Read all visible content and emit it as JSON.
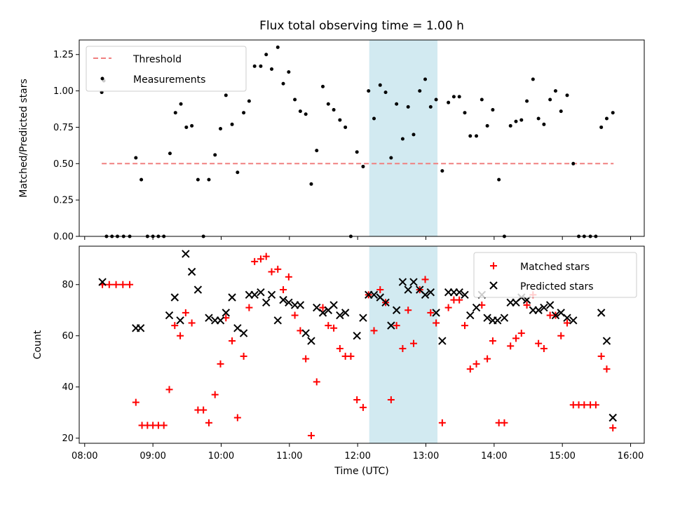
{
  "title": "Flux total observing time = 1.00 h",
  "colors": {
    "threshold": "#f08080",
    "measurement": "#000000",
    "matched": "#ff0000",
    "predicted": "#000000",
    "highlight": "#add8e6"
  },
  "chart_data": [
    {
      "type": "scatter",
      "ylabel": "Matched/Predicted stars",
      "xlim": [
        7.92,
        16.2
      ],
      "ylim": [
        0,
        1.35
      ],
      "x_ticks": [
        8,
        9,
        10,
        11,
        12,
        13,
        14,
        15,
        16
      ],
      "y_ticks": [
        0.0,
        0.25,
        0.5,
        0.75,
        1.0,
        1.25
      ],
      "y_tick_labels": [
        "0.00",
        "0.25",
        "0.50",
        "0.75",
        "1.00",
        "1.25"
      ],
      "highlight_span": [
        12.17,
        13.17
      ],
      "legend_position": "upper left",
      "threshold": {
        "name": "Threshold",
        "value": 0.5,
        "x_range": [
          8.25,
          15.75
        ]
      },
      "series": [
        {
          "name": "Measurements",
          "marker": "dot",
          "points": [
            [
              8.25,
              0.99
            ],
            [
              8.28,
              1.07
            ],
            [
              8.32,
              0
            ],
            [
              8.4,
              0
            ],
            [
              8.48,
              0
            ],
            [
              8.57,
              0
            ],
            [
              8.66,
              0
            ],
            [
              8.75,
              0.54
            ],
            [
              8.83,
              0.39
            ],
            [
              8.92,
              0
            ],
            [
              9.0,
              0
            ],
            [
              9.08,
              0
            ],
            [
              9.16,
              0
            ],
            [
              9.25,
              0.57
            ],
            [
              9.33,
              0.85
            ],
            [
              9.41,
              0.91
            ],
            [
              9.49,
              0.75
            ],
            [
              9.57,
              0.76
            ],
            [
              9.66,
              0.39
            ],
            [
              9.74,
              0
            ],
            [
              9.82,
              0.39
            ],
            [
              9.91,
              0.56
            ],
            [
              9.99,
              0.74
            ],
            [
              10.07,
              0.97
            ],
            [
              10.16,
              0.77
            ],
            [
              10.24,
              0.44
            ],
            [
              10.33,
              0.85
            ],
            [
              10.41,
              0.93
            ],
            [
              10.49,
              1.17
            ],
            [
              10.58,
              1.17
            ],
            [
              10.66,
              1.25
            ],
            [
              10.74,
              1.15
            ],
            [
              10.83,
              1.3
            ],
            [
              10.91,
              1.05
            ],
            [
              10.99,
              1.13
            ],
            [
              11.08,
              0.94
            ],
            [
              11.16,
              0.86
            ],
            [
              11.24,
              0.84
            ],
            [
              11.32,
              0.36
            ],
            [
              11.4,
              0.59
            ],
            [
              11.49,
              1.03
            ],
            [
              11.57,
              0.91
            ],
            [
              11.65,
              0.87
            ],
            [
              11.74,
              0.8
            ],
            [
              11.82,
              0.75
            ],
            [
              11.9,
              0
            ],
            [
              11.99,
              0.58
            ],
            [
              12.08,
              0.48
            ],
            [
              12.16,
              1.0
            ],
            [
              12.24,
              0.81
            ],
            [
              12.33,
              1.04
            ],
            [
              12.41,
              0.99
            ],
            [
              12.49,
              0.54
            ],
            [
              12.57,
              0.91
            ],
            [
              12.66,
              0.67
            ],
            [
              12.74,
              0.89
            ],
            [
              12.82,
              0.7
            ],
            [
              12.91,
              1.0
            ],
            [
              12.99,
              1.08
            ],
            [
              13.07,
              0.89
            ],
            [
              13.15,
              0.94
            ],
            [
              13.24,
              0.45
            ],
            [
              13.33,
              0.92
            ],
            [
              13.41,
              0.96
            ],
            [
              13.49,
              0.96
            ],
            [
              13.57,
              0.85
            ],
            [
              13.65,
              0.69
            ],
            [
              13.74,
              0.69
            ],
            [
              13.82,
              0.94
            ],
            [
              13.9,
              0.76
            ],
            [
              13.98,
              0.87
            ],
            [
              14.07,
              0.39
            ],
            [
              14.15,
              0
            ],
            [
              14.24,
              0.76
            ],
            [
              14.32,
              0.79
            ],
            [
              14.4,
              0.8
            ],
            [
              14.48,
              0.93
            ],
            [
              14.57,
              1.08
            ],
            [
              14.65,
              0.81
            ],
            [
              14.73,
              0.77
            ],
            [
              14.82,
              0.94
            ],
            [
              14.9,
              1.0
            ],
            [
              14.98,
              0.86
            ],
            [
              15.07,
              0.97
            ],
            [
              15.16,
              0.5
            ],
            [
              15.24,
              0
            ],
            [
              15.32,
              0
            ],
            [
              15.41,
              0
            ],
            [
              15.49,
              0
            ],
            [
              15.57,
              0.75
            ],
            [
              15.65,
              0.81
            ],
            [
              15.74,
              0.85
            ]
          ]
        }
      ]
    },
    {
      "type": "scatter",
      "xlabel": "Time (UTC)",
      "ylabel": "Count",
      "xlim": [
        7.92,
        16.2
      ],
      "ylim": [
        18,
        95
      ],
      "x_ticks": [
        8,
        9,
        10,
        11,
        12,
        13,
        14,
        15,
        16
      ],
      "x_tick_labels": [
        "08:00",
        "09:00",
        "10:00",
        "11:00",
        "12:00",
        "13:00",
        "14:00",
        "15:00",
        "16:00"
      ],
      "y_ticks": [
        20,
        40,
        60,
        80
      ],
      "y_tick_labels": [
        "20",
        "40",
        "60",
        "80"
      ],
      "highlight_span": [
        12.17,
        13.17
      ],
      "legend_position": "upper right",
      "series": [
        {
          "name": "Matched stars",
          "marker": "plus",
          "points": [
            [
              8.26,
              80
            ],
            [
              8.36,
              80
            ],
            [
              8.46,
              80
            ],
            [
              8.56,
              80
            ],
            [
              8.66,
              80
            ],
            [
              8.75,
              34
            ],
            [
              8.84,
              25
            ],
            [
              8.92,
              25
            ],
            [
              9.0,
              25
            ],
            [
              9.08,
              25
            ],
            [
              9.16,
              25
            ],
            [
              9.24,
              39
            ],
            [
              9.32,
              64
            ],
            [
              9.4,
              60
            ],
            [
              9.48,
              69
            ],
            [
              9.57,
              65
            ],
            [
              9.66,
              31
            ],
            [
              9.74,
              31
            ],
            [
              9.82,
              26
            ],
            [
              9.91,
              37
            ],
            [
              9.99,
              49
            ],
            [
              10.07,
              67
            ],
            [
              10.16,
              58
            ],
            [
              10.24,
              28
            ],
            [
              10.33,
              52
            ],
            [
              10.41,
              71
            ],
            [
              10.49,
              89
            ],
            [
              10.58,
              90
            ],
            [
              10.66,
              91
            ],
            [
              10.74,
              85
            ],
            [
              10.83,
              86
            ],
            [
              10.91,
              78
            ],
            [
              10.99,
              83
            ],
            [
              11.08,
              68
            ],
            [
              11.16,
              62
            ],
            [
              11.24,
              51
            ],
            [
              11.32,
              21
            ],
            [
              11.4,
              42
            ],
            [
              11.49,
              71
            ],
            [
              11.57,
              64
            ],
            [
              11.65,
              63
            ],
            [
              11.74,
              55
            ],
            [
              11.82,
              52
            ],
            [
              11.9,
              52
            ],
            [
              11.99,
              35
            ],
            [
              12.08,
              32
            ],
            [
              12.16,
              76
            ],
            [
              12.24,
              62
            ],
            [
              12.33,
              78
            ],
            [
              12.41,
              73
            ],
            [
              12.49,
              35
            ],
            [
              12.57,
              64
            ],
            [
              12.66,
              55
            ],
            [
              12.74,
              70
            ],
            [
              12.82,
              57
            ],
            [
              12.91,
              78
            ],
            [
              12.99,
              82
            ],
            [
              13.07,
              69
            ],
            [
              13.15,
              65
            ],
            [
              13.24,
              26
            ],
            [
              13.33,
              71
            ],
            [
              13.41,
              74
            ],
            [
              13.49,
              74
            ],
            [
              13.57,
              64
            ],
            [
              13.65,
              47
            ],
            [
              13.74,
              49
            ],
            [
              13.82,
              72
            ],
            [
              13.9,
              51
            ],
            [
              13.98,
              58
            ],
            [
              14.07,
              26
            ],
            [
              14.15,
              26
            ],
            [
              14.24,
              56
            ],
            [
              14.32,
              59
            ],
            [
              14.4,
              61
            ],
            [
              14.48,
              72
            ],
            [
              14.57,
              76
            ],
            [
              14.65,
              57
            ],
            [
              14.73,
              55
            ],
            [
              14.82,
              68
            ],
            [
              14.9,
              68
            ],
            [
              14.98,
              60
            ],
            [
              15.07,
              65
            ],
            [
              15.16,
              33
            ],
            [
              15.24,
              33
            ],
            [
              15.32,
              33
            ],
            [
              15.41,
              33
            ],
            [
              15.49,
              33
            ],
            [
              15.57,
              52
            ],
            [
              15.65,
              47
            ],
            [
              15.74,
              24
            ]
          ]
        },
        {
          "name": "Predicted stars",
          "marker": "x",
          "points": [
            [
              8.26,
              81
            ],
            [
              8.75,
              63
            ],
            [
              8.82,
              63
            ],
            [
              9.24,
              68
            ],
            [
              9.32,
              75
            ],
            [
              9.4,
              66
            ],
            [
              9.48,
              92
            ],
            [
              9.57,
              85
            ],
            [
              9.66,
              78
            ],
            [
              9.82,
              67
            ],
            [
              9.91,
              66
            ],
            [
              9.99,
              66
            ],
            [
              10.07,
              69
            ],
            [
              10.16,
              75
            ],
            [
              10.24,
              63
            ],
            [
              10.33,
              61
            ],
            [
              10.41,
              76
            ],
            [
              10.49,
              76
            ],
            [
              10.58,
              77
            ],
            [
              10.66,
              73
            ],
            [
              10.74,
              76
            ],
            [
              10.83,
              66
            ],
            [
              10.91,
              74
            ],
            [
              10.99,
              73
            ],
            [
              11.08,
              72
            ],
            [
              11.16,
              72
            ],
            [
              11.24,
              61
            ],
            [
              11.32,
              58
            ],
            [
              11.4,
              71
            ],
            [
              11.49,
              69
            ],
            [
              11.57,
              70
            ],
            [
              11.65,
              72
            ],
            [
              11.74,
              68
            ],
            [
              11.82,
              69
            ],
            [
              11.99,
              60
            ],
            [
              12.08,
              67
            ],
            [
              12.16,
              76
            ],
            [
              12.24,
              76
            ],
            [
              12.33,
              75
            ],
            [
              12.41,
              73
            ],
            [
              12.49,
              64
            ],
            [
              12.57,
              70
            ],
            [
              12.66,
              81
            ],
            [
              12.74,
              78
            ],
            [
              12.82,
              81
            ],
            [
              12.91,
              78
            ],
            [
              12.99,
              76
            ],
            [
              13.07,
              77
            ],
            [
              13.15,
              69
            ],
            [
              13.24,
              58
            ],
            [
              13.33,
              77
            ],
            [
              13.41,
              77
            ],
            [
              13.49,
              77
            ],
            [
              13.57,
              76
            ],
            [
              13.65,
              68
            ],
            [
              13.74,
              71
            ],
            [
              13.82,
              76
            ],
            [
              13.9,
              67
            ],
            [
              13.98,
              66
            ],
            [
              14.05,
              66
            ],
            [
              14.15,
              67
            ],
            [
              14.24,
              73
            ],
            [
              14.32,
              73
            ],
            [
              14.4,
              75
            ],
            [
              14.48,
              74
            ],
            [
              14.57,
              70
            ],
            [
              14.65,
              70
            ],
            [
              14.73,
              71
            ],
            [
              14.82,
              72
            ],
            [
              14.9,
              68
            ],
            [
              14.98,
              69
            ],
            [
              15.07,
              67
            ],
            [
              15.16,
              66
            ],
            [
              15.57,
              69
            ],
            [
              15.65,
              58
            ],
            [
              15.74,
              28
            ]
          ]
        }
      ]
    }
  ]
}
